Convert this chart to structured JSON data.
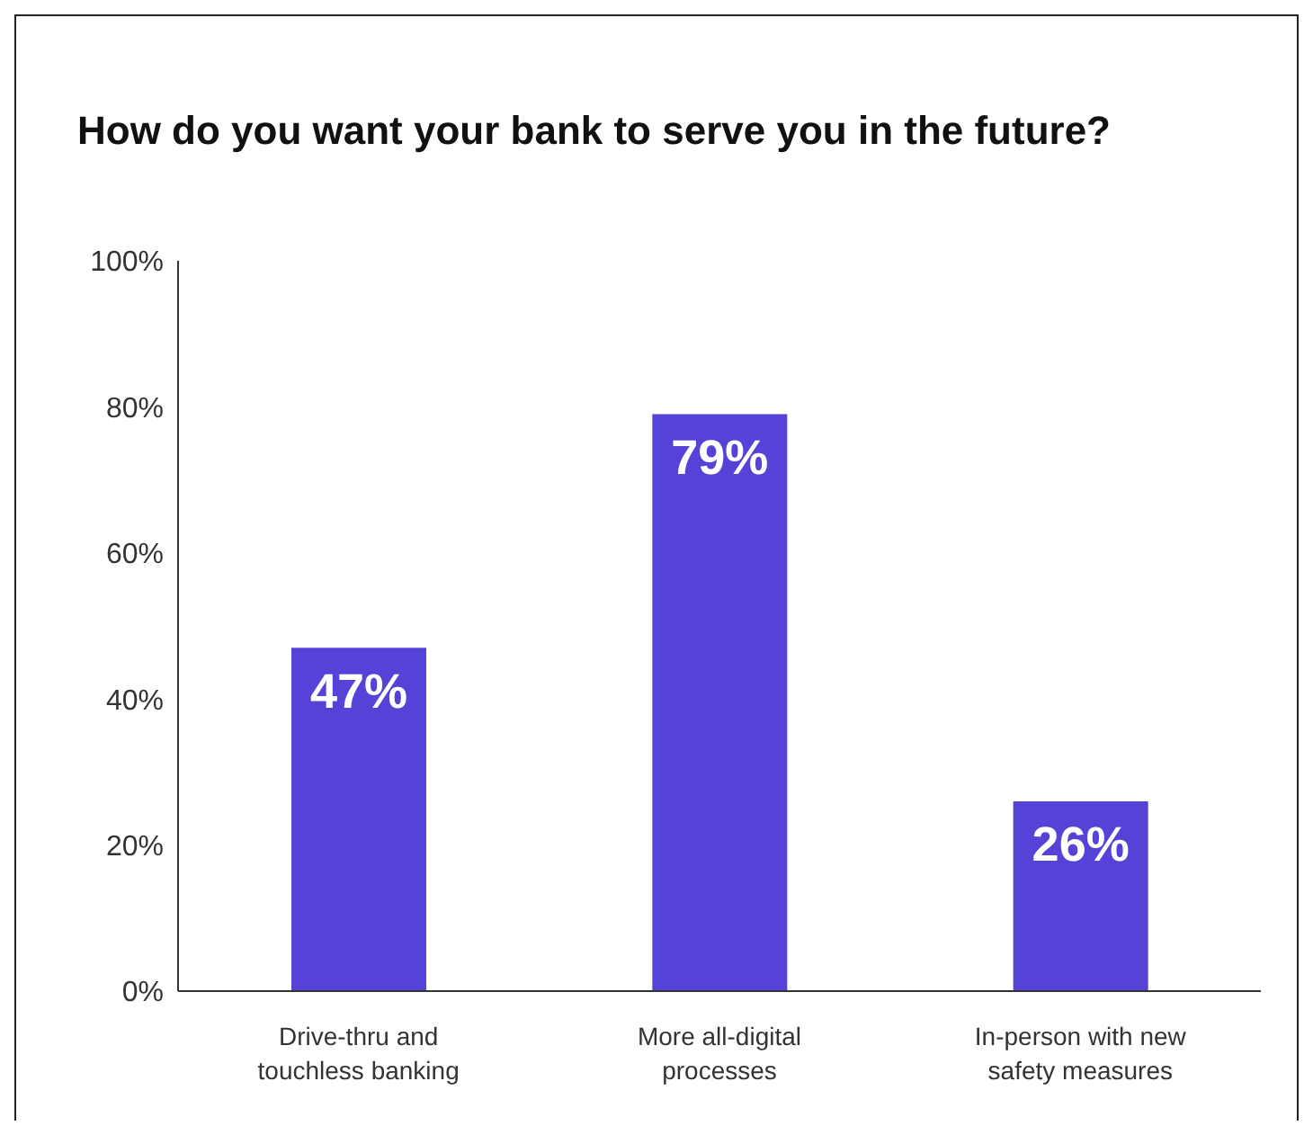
{
  "chart_data": {
    "type": "bar",
    "title": "How do you want your bank to serve you in the future?",
    "categories": [
      "Drive-thru and touchless banking",
      "More all-digital processes",
      "In-person with new safety measures"
    ],
    "values": [
      47,
      79,
      26
    ],
    "color": "#5443d6",
    "value_labels": [
      "47%",
      "79%",
      "26%"
    ],
    "ylim": [
      0,
      100
    ],
    "yticks": [
      {
        "value": 0,
        "label": "0%"
      },
      {
        "value": 20,
        "label": "20%"
      },
      {
        "value": 40,
        "label": "40%"
      },
      {
        "value": 60,
        "label": "60%"
      },
      {
        "value": 80,
        "label": "80%"
      },
      {
        "value": 100,
        "label": "100%"
      }
    ],
    "grid": false,
    "legend": false
  }
}
